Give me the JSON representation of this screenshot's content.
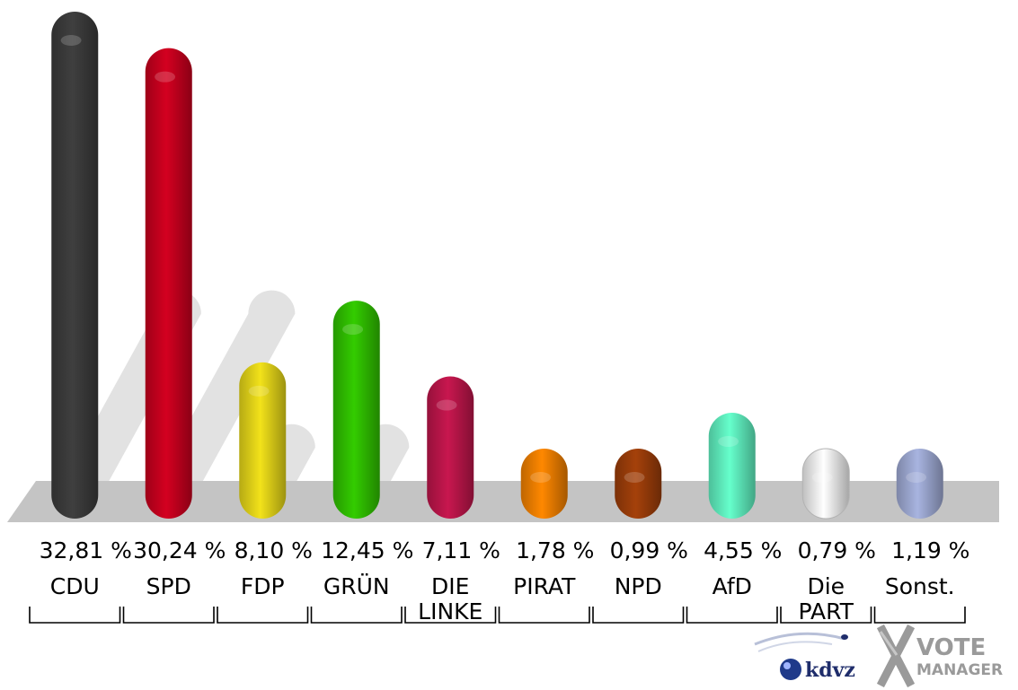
{
  "chart_data": {
    "type": "bar",
    "categories": [
      "CDU",
      "SPD",
      "FDP",
      "GRÜNE",
      "DIE LINKE",
      "PIRATEN",
      "NPD",
      "AfD",
      "Die PARTEI",
      "Sonst."
    ],
    "label_lines": [
      [
        "CDU"
      ],
      [
        "SPD"
      ],
      [
        "FDP"
      ],
      [
        "GRÜN"
      ],
      [
        "DIE",
        "LINKE"
      ],
      [
        "PIRAT"
      ],
      [
        "NPD"
      ],
      [
        "AfD"
      ],
      [
        "Die",
        "PART"
      ],
      [
        "Sonst."
      ]
    ],
    "values": [
      32.81,
      30.24,
      8.1,
      12.45,
      7.11,
      1.78,
      0.99,
      4.55,
      0.79,
      1.19
    ],
    "value_labels": [
      "32,81 %",
      "30,24 %",
      "8,10 %",
      "12,45 %",
      "7,11 %",
      "1,78 %",
      "0,99 %",
      "4,55 %",
      "0,79 %",
      "1,19 %"
    ],
    "shadow_values": [
      18.3,
      18.3,
      5.2,
      5.2
    ],
    "colors": [
      "#3f3f3f",
      "#d40020",
      "#f2e21a",
      "#33cc00",
      "#c8174f",
      "#ff8800",
      "#a5410a",
      "#66ffcc",
      "#ffffff",
      "#a8b4e0"
    ],
    "ylim": [
      0,
      33
    ]
  },
  "logos": {
    "kdvz": "kdvz",
    "vote_line1": "VOTE",
    "vote_line2": "MANAGER"
  }
}
